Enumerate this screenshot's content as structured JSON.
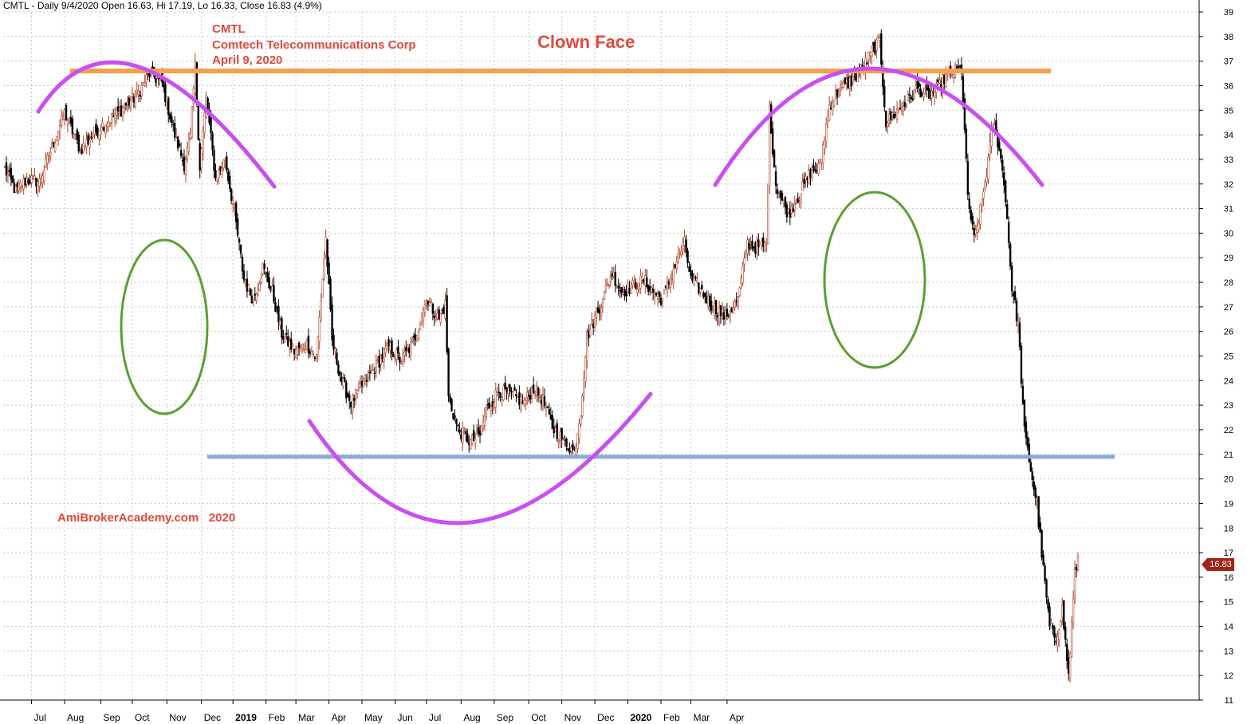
{
  "header": {
    "text": "CMTL - Daily 9/4/2020 Open 16.63, Hi 17.19, Lo 16.33, Close 16.83 (4.9%)"
  },
  "annotations": {
    "ticker": "CMTL",
    "company": "Comtech Telecommunications Corp",
    "date": "April 9, 2020",
    "pattern": "Clown Face",
    "watermark": "AmiBrokerAcademy.com   2020"
  },
  "last_price_label": "16.83",
  "colors": {
    "up": "#b0452a",
    "down": "#000000",
    "resistance": "#f5a04a",
    "support": "#8aaae0",
    "arc": "#c94ff0",
    "ellipse": "#5aa032",
    "text": "#e04a3c"
  },
  "chart_data": {
    "type": "candlestick",
    "ylim": [
      11,
      39
    ],
    "y_ticks": [
      11,
      12,
      13,
      14,
      15,
      16,
      17,
      18,
      19,
      20,
      21,
      22,
      23,
      24,
      25,
      26,
      27,
      28,
      29,
      30,
      31,
      32,
      33,
      34,
      35,
      36,
      37,
      38,
      39
    ],
    "x_months": [
      "Jul",
      "Aug",
      "Sep",
      "Oct",
      "Nov",
      "Dec",
      "2019",
      "Feb",
      "Mar",
      "Apr",
      "May",
      "Jun",
      "Jul",
      "Aug",
      "Sep",
      "Oct",
      "Nov",
      "Dec",
      "2020",
      "Feb",
      "Mar",
      "Apr"
    ],
    "x_bold": [
      "2019",
      "2020"
    ],
    "resistance": 36.6,
    "support": 20.9,
    "close_anchors": [
      [
        0,
        32.6
      ],
      [
        7,
        31.7
      ],
      [
        14,
        32.2
      ],
      [
        22,
        32.1
      ],
      [
        30,
        33.5
      ],
      [
        38,
        34.9
      ],
      [
        48,
        33.4
      ],
      [
        60,
        34.3
      ],
      [
        72,
        34.9
      ],
      [
        84,
        35.6
      ],
      [
        92,
        36.5
      ],
      [
        100,
        36.1
      ],
      [
        108,
        34.0
      ],
      [
        114,
        32.8
      ],
      [
        118,
        33.9
      ],
      [
        121,
        36.8
      ],
      [
        124,
        32.7
      ],
      [
        128,
        35.5
      ],
      [
        134,
        32.2
      ],
      [
        140,
        33.0
      ],
      [
        146,
        30.8
      ],
      [
        152,
        28.1
      ],
      [
        158,
        27.3
      ],
      [
        164,
        28.6
      ],
      [
        170,
        27.6
      ],
      [
        176,
        25.9
      ],
      [
        184,
        25.2
      ],
      [
        192,
        25.5
      ],
      [
        198,
        24.9
      ],
      [
        204,
        29.8
      ],
      [
        208,
        25.6
      ],
      [
        214,
        24.0
      ],
      [
        220,
        23.1
      ],
      [
        228,
        23.9
      ],
      [
        236,
        24.6
      ],
      [
        244,
        25.4
      ],
      [
        252,
        24.8
      ],
      [
        260,
        25.6
      ],
      [
        268,
        27.3
      ],
      [
        276,
        26.5
      ],
      [
        280,
        27.1
      ],
      [
        282,
        23.3
      ],
      [
        288,
        22.0
      ],
      [
        296,
        21.5
      ],
      [
        302,
        21.8
      ],
      [
        306,
        22.8
      ],
      [
        314,
        23.6
      ],
      [
        322,
        23.4
      ],
      [
        330,
        23.1
      ],
      [
        336,
        23.7
      ],
      [
        342,
        23.2
      ],
      [
        348,
        22.1
      ],
      [
        356,
        21.5
      ],
      [
        362,
        21.1
      ],
      [
        366,
        22.8
      ],
      [
        370,
        25.8
      ],
      [
        378,
        27.0
      ],
      [
        386,
        28.4
      ],
      [
        392,
        27.6
      ],
      [
        398,
        27.8
      ],
      [
        406,
        28.1
      ],
      [
        412,
        27.6
      ],
      [
        418,
        27.3
      ],
      [
        426,
        28.7
      ],
      [
        432,
        29.6
      ],
      [
        436,
        28.1
      ],
      [
        442,
        27.7
      ],
      [
        450,
        27.0
      ],
      [
        458,
        26.6
      ],
      [
        466,
        27.3
      ],
      [
        472,
        29.6
      ],
      [
        478,
        29.4
      ],
      [
        484,
        29.5
      ],
      [
        486,
        35.0
      ],
      [
        490,
        32.0
      ],
      [
        494,
        31.3
      ],
      [
        498,
        30.8
      ],
      [
        506,
        31.7
      ],
      [
        512,
        32.5
      ],
      [
        518,
        32.7
      ],
      [
        524,
        35.2
      ],
      [
        530,
        35.8
      ],
      [
        538,
        36.2
      ],
      [
        546,
        36.8
      ],
      [
        552,
        37.5
      ],
      [
        556,
        37.8
      ],
      [
        560,
        34.5
      ],
      [
        566,
        34.9
      ],
      [
        574,
        35.4
      ],
      [
        580,
        35.9
      ],
      [
        586,
        35.6
      ],
      [
        592,
        35.8
      ],
      [
        598,
        36.4
      ],
      [
        604,
        36.6
      ],
      [
        608,
        36.7
      ],
      [
        612,
        31.5
      ],
      [
        616,
        29.7
      ],
      [
        620,
        30.9
      ],
      [
        624,
        32.5
      ],
      [
        628,
        34.5
      ],
      [
        632,
        33.5
      ],
      [
        636,
        31.5
      ],
      [
        640,
        27.8
      ],
      [
        644,
        26.3
      ],
      [
        648,
        21.9
      ],
      [
        652,
        20.4
      ],
      [
        656,
        18.9
      ],
      [
        660,
        16.3
      ],
      [
        664,
        14.0
      ],
      [
        668,
        13.5
      ],
      [
        672,
        14.7
      ],
      [
        676,
        12.0
      ],
      [
        680,
        16.1
      ],
      [
        682,
        16.8
      ]
    ],
    "n_bars": 683
  }
}
